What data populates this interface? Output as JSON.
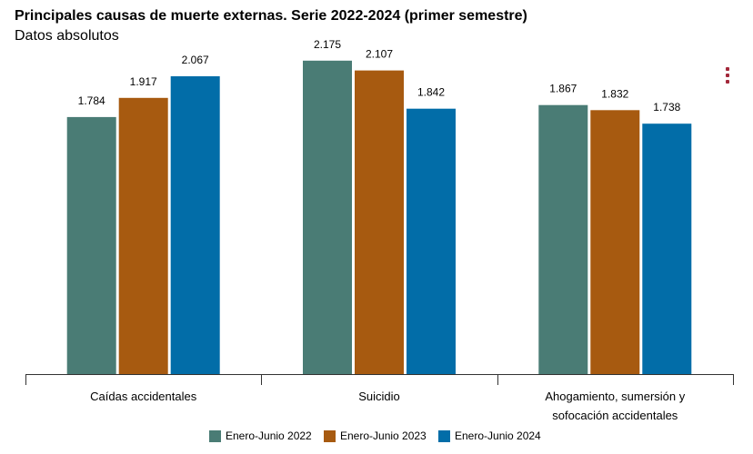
{
  "header": {
    "title": "Principales causas de muerte externas. Serie 2022-2024 (primer semestre)",
    "subtitle": "Datos absolutos"
  },
  "menu": {
    "icon": "kebab-menu-icon",
    "color": "#a3283a"
  },
  "chart_data": {
    "type": "bar",
    "title": "Principales causas de muerte externas. Serie 2022-2024 (primer semestre)",
    "subtitle": "Datos absolutos",
    "xlabel": "",
    "ylabel": "",
    "categories": [
      [
        "Caídas accidentales"
      ],
      [
        "Suicidio"
      ],
      [
        "Ahogamiento, sumersión y",
        "sofocación accidentales"
      ]
    ],
    "series": [
      {
        "name": "Enero-Junio 2022",
        "color": "#4a7c75",
        "values": [
          1784,
          2175,
          1867
        ],
        "labels": [
          "1.784",
          "2.175",
          "1.867"
        ]
      },
      {
        "name": "Enero-Junio 2023",
        "color": "#a75a10",
        "values": [
          1917,
          2107,
          1832
        ],
        "labels": [
          "1.917",
          "2.107",
          "1.832"
        ]
      },
      {
        "name": "Enero-Junio 2024",
        "color": "#026da8",
        "values": [
          2067,
          1842,
          1738
        ],
        "labels": [
          "2.067",
          "1.842",
          "1.738"
        ]
      }
    ],
    "ylim": [
      0,
      2300
    ],
    "grid": false,
    "legend_position": "bottom"
  }
}
